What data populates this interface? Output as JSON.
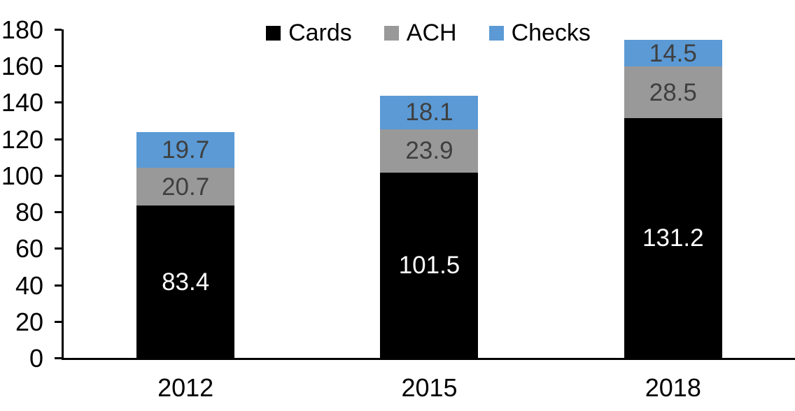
{
  "chart_data": {
    "type": "bar",
    "subtype": "stacked-column",
    "title": "",
    "xlabel": "",
    "ylabel": "",
    "categories": [
      "2012",
      "2015",
      "2018"
    ],
    "series": [
      {
        "name": "Cards",
        "values": [
          83.4,
          101.5,
          131.2
        ],
        "color": "#000000",
        "label_color": "#ffffff"
      },
      {
        "name": "ACH",
        "values": [
          20.7,
          23.9,
          28.5
        ],
        "color": "#999999",
        "label_color": "#3f3f3f"
      },
      {
        "name": "Checks",
        "values": [
          19.7,
          18.1,
          14.5
        ],
        "color": "#5b9ad5",
        "label_color": "#3f3f3f"
      }
    ],
    "ylim": [
      0,
      180
    ],
    "ytick_step": 20,
    "ytick_labels": [
      "0",
      "20",
      "40",
      "60",
      "80",
      "100",
      "120",
      "140",
      "160",
      "180"
    ],
    "grid": false,
    "data_labels": true,
    "legend_position": "top-center",
    "axis_color": "#000000",
    "background_color": "#ffffff"
  }
}
